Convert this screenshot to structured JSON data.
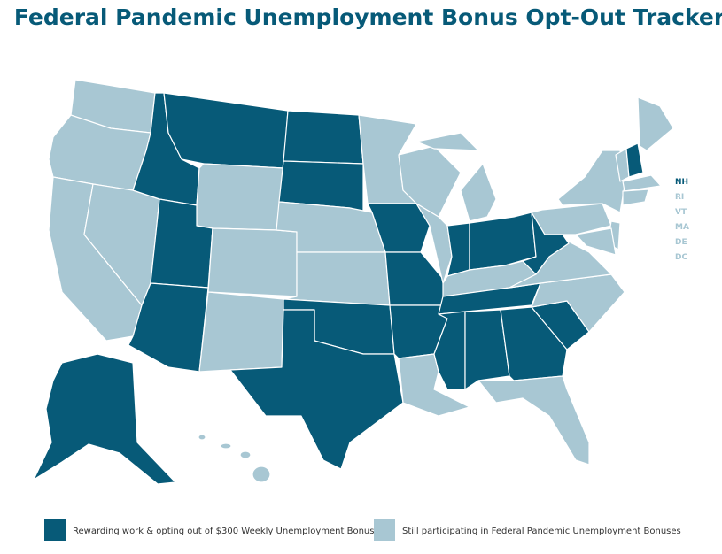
{
  "title": "Federal Pandemic Unemployment Bonus Opt-Out Tracker",
  "legend": [
    {
      "label": "Rewarding work & opting out of $300 Weekly Unemployment Bonus",
      "color": "#075a78"
    },
    {
      "label": "Still participating in Federal Pandemic Unemployment Bonuses",
      "color": "#a8c7d3"
    }
  ],
  "small_states": [
    {
      "label": "NH",
      "color": "#075a78"
    },
    {
      "label": "RI",
      "color": "#a8c7d3"
    },
    {
      "label": "VT",
      "color": "#a8c7d3"
    },
    {
      "label": "MA",
      "color": "#a8c7d3"
    },
    {
      "label": "DE",
      "color": "#a8c7d3"
    },
    {
      "label": "DC",
      "color": "#a8c7d3"
    }
  ]
}
